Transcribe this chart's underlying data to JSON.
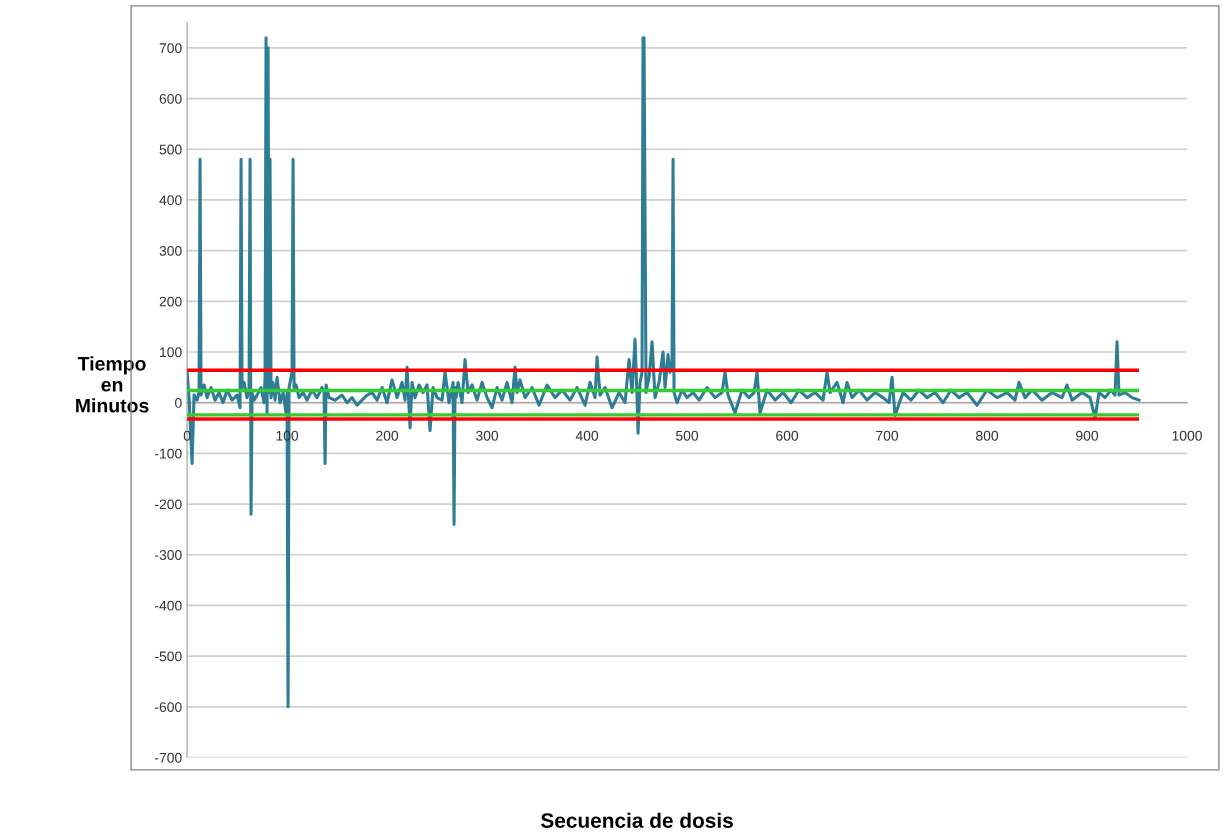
{
  "chart_data": {
    "type": "line",
    "xlabel": "Secuencia de dosis",
    "ylabel": "Tiempo\nen\nMinutos",
    "xlim": [
      0,
      1000
    ],
    "xticks": [
      0,
      100,
      200,
      300,
      400,
      500,
      600,
      700,
      800,
      900,
      1000
    ],
    "ylim": [
      -700,
      750
    ],
    "yticks": [
      -700,
      -600,
      -500,
      -400,
      -300,
      -200,
      -100,
      0,
      100,
      200,
      300,
      400,
      500,
      600,
      700
    ],
    "grid": "y",
    "ref_lines": [
      {
        "axis": "y",
        "value": 64,
        "color": "#ff0000"
      },
      {
        "axis": "y",
        "value": 24,
        "color": "#33cc33"
      },
      {
        "axis": "y",
        "value": -24,
        "color": "#33cc33"
      },
      {
        "axis": "y",
        "value": -32,
        "color": "#ff0000"
      }
    ],
    "series": [
      {
        "color": "#2e7d95",
        "x": [
          0,
          2,
          5,
          7,
          10,
          12,
          13,
          14,
          17,
          20,
          24,
          28,
          32,
          36,
          40,
          45,
          50,
          53,
          54,
          55,
          57,
          60,
          62,
          63,
          64,
          65,
          67,
          70,
          74,
          77,
          78,
          79,
          80,
          81,
          82,
          83,
          84,
          86,
          88,
          90,
          93,
          96,
          99,
          100,
          101,
          102,
          104,
          105,
          106,
          107,
          109,
          112,
          116,
          120,
          125,
          130,
          135,
          137,
          138,
          139,
          142,
          148,
          155,
          160,
          165,
          170,
          175,
          180,
          185,
          190,
          195,
          200,
          205,
          210,
          215,
          218,
          220,
          223,
          225,
          228,
          232,
          236,
          240,
          243,
          246,
          250,
          255,
          258,
          262,
          266,
          267,
          268,
          269,
          271,
          275,
          278,
          281,
          285,
          290,
          295,
          300,
          305,
          310,
          315,
          320,
          325,
          328,
          330,
          333,
          338,
          345,
          352,
          360,
          368,
          375,
          383,
          390,
          398,
          403,
          408,
          410,
          413,
          418,
          425,
          432,
          438,
          442,
          445,
          448,
          450,
          451,
          453,
          455,
          456,
          457,
          459,
          462,
          465,
          468,
          472,
          476,
          478,
          481,
          483,
          485,
          486,
          487,
          490,
          495,
          500,
          506,
          512,
          520,
          528,
          535,
          538,
          541,
          548,
          555,
          562,
          567,
          570,
          573,
          580,
          588,
          596,
          604,
          612,
          620,
          628,
          636,
          640,
          643,
          650,
          656,
          660,
          665,
          672,
          680,
          688,
          696,
          702,
          705,
          708,
          716,
          724,
          732,
          740,
          748,
          756,
          764,
          772,
          780,
          790,
          800,
          810,
          820,
          828,
          832,
          838,
          845,
          855,
          865,
          875,
          880,
          885,
          895,
          903,
          908,
          912,
          918,
          924,
          928,
          930,
          932,
          938,
          945,
          952
        ],
        "values": [
          60,
          10,
          -120,
          15,
          5,
          20,
          480,
          15,
          35,
          10,
          30,
          5,
          20,
          0,
          25,
          5,
          15,
          -10,
          480,
          30,
          40,
          10,
          30,
          480,
          -220,
          20,
          5,
          15,
          30,
          0,
          50,
          720,
          -20,
          700,
          20,
          480,
          10,
          40,
          5,
          50,
          0,
          20,
          -20,
          20,
          -600,
          30,
          50,
          60,
          480,
          30,
          35,
          10,
          20,
          5,
          25,
          10,
          30,
          20,
          -120,
          35,
          10,
          5,
          15,
          0,
          10,
          -5,
          5,
          15,
          20,
          5,
          30,
          0,
          45,
          10,
          40,
          5,
          70,
          -50,
          40,
          10,
          35,
          20,
          35,
          -55,
          30,
          10,
          5,
          60,
          0,
          40,
          -240,
          30,
          10,
          40,
          0,
          85,
          20,
          35,
          5,
          40,
          10,
          -10,
          30,
          5,
          40,
          0,
          70,
          20,
          45,
          10,
          30,
          -5,
          35,
          10,
          25,
          5,
          30,
          -5,
          40,
          10,
          90,
          15,
          30,
          -10,
          20,
          0,
          85,
          20,
          125,
          10,
          -60,
          40,
          60,
          720,
          720,
          20,
          50,
          120,
          10,
          40,
          100,
          30,
          95,
          60,
          70,
          480,
          20,
          0,
          25,
          10,
          20,
          5,
          30,
          10,
          20,
          60,
          15,
          -20,
          25,
          10,
          20,
          60,
          -20,
          25,
          5,
          20,
          0,
          25,
          10,
          20,
          5,
          60,
          20,
          40,
          0,
          40,
          10,
          25,
          5,
          20,
          10,
          0,
          50,
          -25,
          20,
          5,
          25,
          10,
          20,
          0,
          25,
          10,
          20,
          -5,
          25,
          10,
          20,
          5,
          40,
          10,
          25,
          5,
          20,
          10,
          35,
          5,
          20,
          10,
          -30,
          20,
          10,
          25,
          15,
          120,
          15,
          20,
          10,
          5
        ]
      }
    ]
  }
}
